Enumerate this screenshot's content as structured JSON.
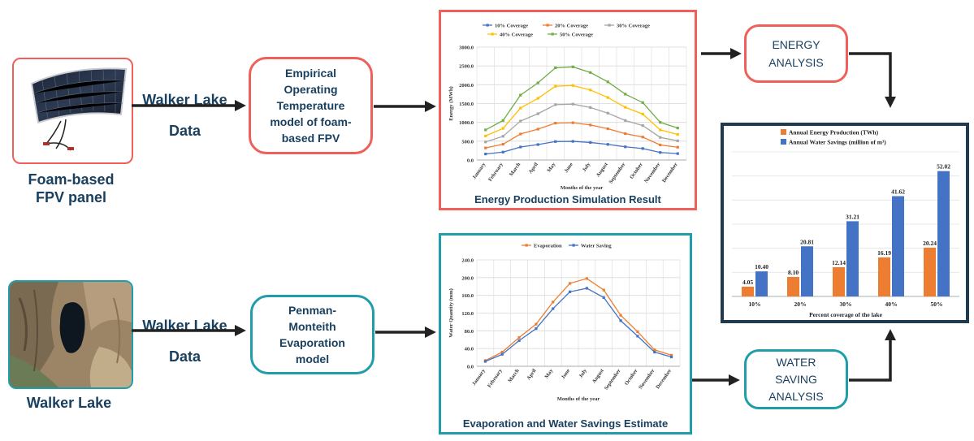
{
  "solar_panel": {
    "caption_line1": "Foam-based",
    "caption_line2": "FPV panel"
  },
  "lake": {
    "caption": "Walker Lake"
  },
  "links": {
    "top_label_line1": "Walker Lake",
    "top_label_line2": "Data",
    "bottom_label_line1": "Walker Lake",
    "bottom_label_line2": "Data"
  },
  "boxes": {
    "empirical": [
      "Empirical",
      "Operating",
      "Temperature",
      "model of foam-",
      "based FPV"
    ],
    "penman": [
      "Penman-",
      "Monteith",
      "Evaporation",
      "model"
    ],
    "energy": [
      "ENERGY",
      "ANALYSIS"
    ],
    "water": [
      "WATER",
      "SAVING",
      "ANALYSIS"
    ]
  },
  "colors": {
    "red": "#f0605a",
    "teal": "#1f9eaa",
    "navy": "#1f3b4d",
    "text": "#1a4060",
    "orange": "#ed7d31",
    "blue": "#4472c4",
    "gray": "#a5a5a5",
    "yellow": "#ffc000",
    "green": "#70ad47"
  },
  "chart_data": [
    {
      "type": "line",
      "title": "Energy Production Simulation Result",
      "xlabel": "Months of the year",
      "ylabel": "Energy (MWh)",
      "categories": [
        "January",
        "February",
        "March",
        "April",
        "May",
        "June",
        "July",
        "August",
        "September",
        "October",
        "November",
        "December"
      ],
      "y_ticks": [
        "0.0",
        "500.0",
        "1000.0",
        "1500.0",
        "2000.0",
        "2500.0",
        "3000.0"
      ],
      "ylim": [
        0,
        3000
      ],
      "grid": true,
      "legend": "top",
      "series": [
        {
          "name": "10% Coverage",
          "color": "#4472c4",
          "values": [
            160,
            210,
            345,
            410,
            490,
            495,
            465,
            415,
            350,
            305,
            200,
            170
          ]
        },
        {
          "name": "20% Coverage",
          "color": "#ed7d31",
          "values": [
            320,
            420,
            690,
            820,
            980,
            990,
            930,
            830,
            700,
            610,
            400,
            340
          ]
        },
        {
          "name": "30% Coverage",
          "color": "#a5a5a5",
          "values": [
            480,
            630,
            1035,
            1230,
            1470,
            1485,
            1395,
            1245,
            1050,
            915,
            600,
            510
          ]
        },
        {
          "name": "40% Coverage",
          "color": "#ffc000",
          "values": [
            640,
            840,
            1380,
            1640,
            1960,
            1980,
            1860,
            1660,
            1400,
            1220,
            800,
            680
          ]
        },
        {
          "name": "50% Coverage",
          "color": "#70ad47",
          "values": [
            800,
            1050,
            1725,
            2050,
            2450,
            2475,
            2325,
            2075,
            1750,
            1525,
            1000,
            850
          ]
        }
      ]
    },
    {
      "type": "line",
      "title": "Evaporation and Water Savings Estimate",
      "xlabel": "Months of the year",
      "ylabel": "Water Quantity (mm)",
      "categories": [
        "January",
        "February",
        "March",
        "April",
        "May",
        "June",
        "July",
        "August",
        "September",
        "October",
        "November",
        "December"
      ],
      "y_ticks": [
        "0.0",
        "40.0",
        "80.0",
        "120.0",
        "160.0",
        "200.0",
        "240.0"
      ],
      "ylim": [
        0,
        240
      ],
      "grid": true,
      "legend": "top",
      "series": [
        {
          "name": "Evaporation",
          "color": "#ed7d31",
          "values": [
            13,
            32,
            65,
            95,
            145,
            187,
            198,
            172,
            115,
            78,
            37,
            25
          ]
        },
        {
          "name": "Water Saving",
          "color": "#4472c4",
          "values": [
            11,
            27,
            58,
            85,
            130,
            168,
            176,
            155,
            103,
            68,
            32,
            21
          ]
        }
      ]
    },
    {
      "type": "bar",
      "xlabel": "Percent coverage of the lake",
      "categories": [
        "10%",
        "20%",
        "30%",
        "40%",
        "50%"
      ],
      "ylim": [
        0,
        60
      ],
      "grid": true,
      "legend": "top",
      "series": [
        {
          "name": "Annual Energy Production (TWh)",
          "color": "#ed7d31",
          "values": [
            4.05,
            8.1,
            12.14,
            16.19,
            20.24
          ],
          "labels": [
            "4.05",
            "8.10",
            "12.14",
            "16.19",
            "20.24"
          ]
        },
        {
          "name": "Annual Water Savings (million of m³)",
          "color": "#4472c4",
          "values": [
            10.4,
            20.81,
            31.21,
            41.62,
            52.02
          ],
          "labels": [
            "10.40",
            "20.81",
            "31.21",
            "41.62",
            "52.02"
          ]
        }
      ]
    }
  ]
}
